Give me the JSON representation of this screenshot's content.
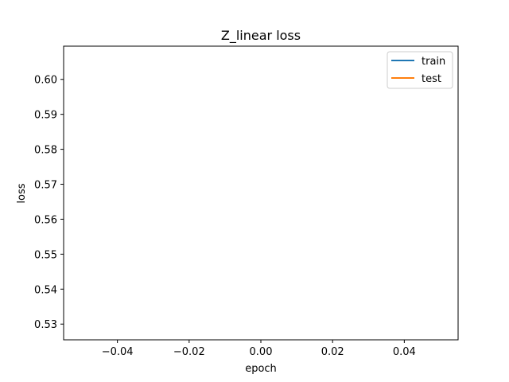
{
  "chart_data": {
    "type": "line",
    "title": "Z_linear loss",
    "xlabel": "epoch",
    "ylabel": "loss",
    "xlim": [
      -0.055,
      0.055
    ],
    "ylim": [
      0.5255,
      0.6095
    ],
    "xticks": [
      -0.04,
      -0.02,
      0.0,
      0.02,
      0.04
    ],
    "xtick_labels": [
      "−0.04",
      "−0.02",
      "0.00",
      "0.02",
      "0.04"
    ],
    "yticks": [
      0.53,
      0.54,
      0.55,
      0.56,
      0.57,
      0.58,
      0.59,
      0.6
    ],
    "ytick_labels": [
      "0.53",
      "0.54",
      "0.55",
      "0.56",
      "0.57",
      "0.58",
      "0.59",
      "0.60"
    ],
    "grid": false,
    "legend_position": "top-right",
    "series": [
      {
        "name": "train",
        "color": "#1f77b4",
        "x": [],
        "y": []
      },
      {
        "name": "test",
        "color": "#ff7f0e",
        "x": [],
        "y": []
      }
    ]
  }
}
